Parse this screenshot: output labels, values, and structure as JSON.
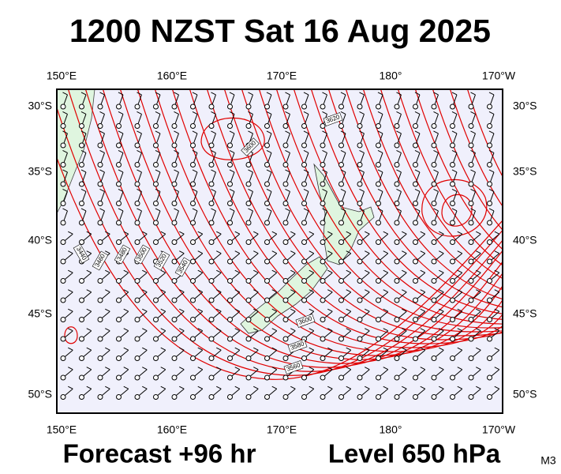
{
  "header": {
    "title": "1200 NZST Sat 16 Aug 2025"
  },
  "map": {
    "lon_labels": [
      "150°E",
      "160°E",
      "170°E",
      "180°",
      "170°W"
    ],
    "lat_labels": [
      "30°S",
      "35°S",
      "40°S",
      "45°S",
      "50°S"
    ],
    "contour_labels": [
      "3620",
      "3600",
      "3600",
      "3580",
      "3560",
      "3440",
      "3460",
      "3480",
      "3500",
      "3520",
      "3540"
    ]
  },
  "footer": {
    "forecast": "Forecast +96 hr",
    "level": "Level 650 hPa",
    "code": "M3"
  }
}
